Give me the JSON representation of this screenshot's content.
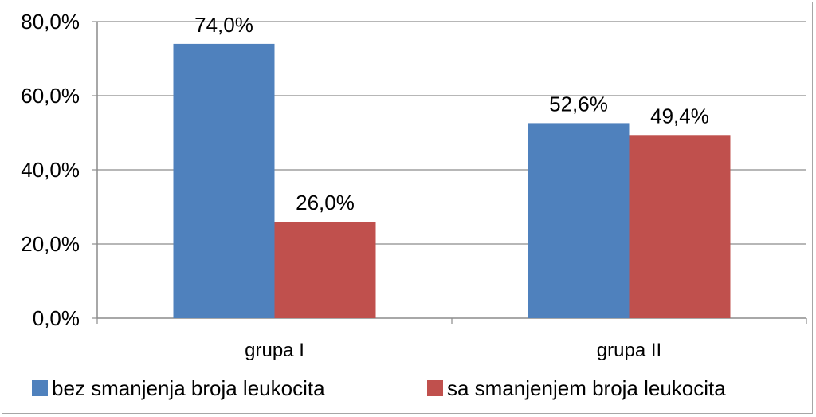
{
  "chart_data": {
    "type": "bar",
    "categories": [
      "grupa I",
      "grupa II"
    ],
    "series": [
      {
        "name": "bez smanjenja broja leukocita",
        "values": [
          74.0,
          52.6
        ],
        "labels": [
          "74,0%",
          "52,6%"
        ],
        "color": "#4f81bd"
      },
      {
        "name": "sa smanjenjem broja leukocita",
        "values": [
          26.0,
          49.4
        ],
        "labels": [
          "26,0%",
          "49,4%"
        ],
        "color": "#c0504d"
      }
    ],
    "yticks": [
      0,
      20,
      40,
      60,
      80
    ],
    "ytick_labels": [
      "0,0%",
      "20,0%",
      "40,0%",
      "60,0%",
      "80,0%"
    ],
    "ylim": [
      0,
      80
    ],
    "grid": true,
    "legend_position": "bottom",
    "title": "",
    "xlabel": "",
    "ylabel": ""
  }
}
